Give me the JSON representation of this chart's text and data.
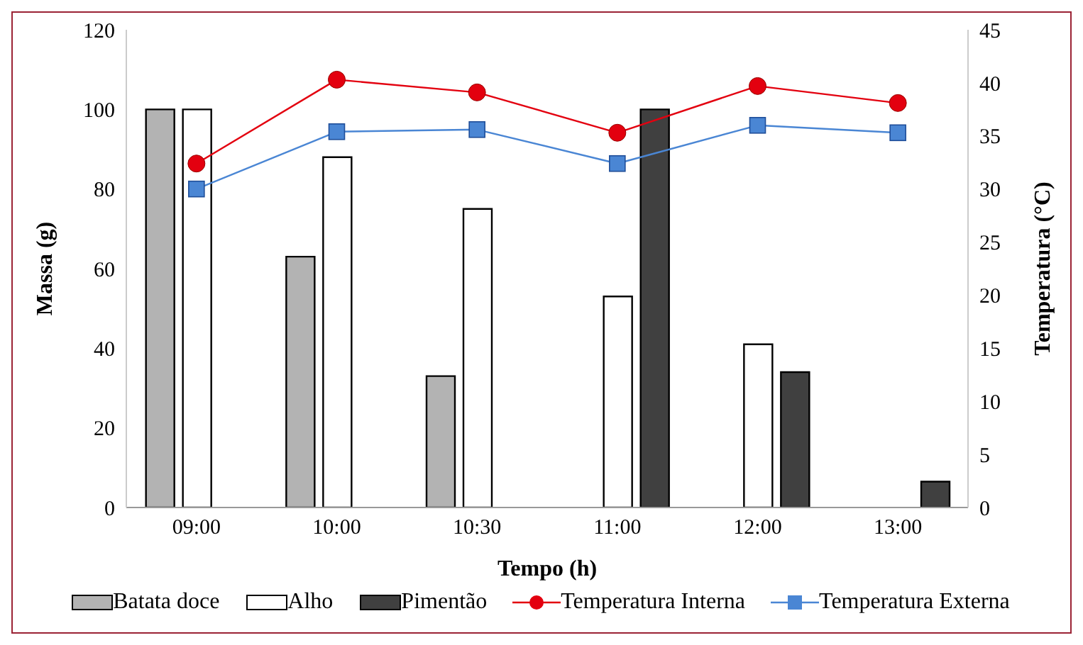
{
  "chart_data": {
    "type": "bar",
    "xlabel": "Tempo (h)",
    "ylabel": "Massa (g)",
    "y2label": "Temperatura (°C)",
    "categories": [
      "09:00",
      "10:00",
      "10:30",
      "11:00",
      "12:00",
      "13:00"
    ],
    "series": [
      {
        "name": "Batata doce",
        "color": "#b3b3b3",
        "values": [
          100,
          63,
          33,
          null,
          null,
          null
        ]
      },
      {
        "name": "Alho",
        "color": "#ffffff",
        "values": [
          100,
          88,
          75,
          53,
          41,
          null
        ]
      },
      {
        "name": "Pimentão",
        "color": "#404040",
        "values": [
          null,
          null,
          null,
          100,
          34,
          6.5
        ]
      },
      {
        "name": "Temperatura Interna",
        "type": "line",
        "axis": "y2",
        "color": "#e3000f",
        "marker": "circle",
        "values": [
          32.4,
          40.3,
          39.1,
          35.3,
          39.7,
          38.1
        ]
      },
      {
        "name": "Temperatura Externa",
        "type": "line",
        "axis": "y2",
        "color": "#4a86d4",
        "marker": "square",
        "values": [
          30,
          35.4,
          35.6,
          32.4,
          36,
          35.3
        ]
      }
    ],
    "ylim": [
      0,
      120
    ],
    "yticks": [
      0,
      20,
      40,
      60,
      80,
      100,
      120
    ],
    "y2lim": [
      0,
      45
    ],
    "y2ticks": [
      0,
      5,
      10,
      15,
      20,
      25,
      30,
      35,
      40,
      45
    ],
    "grid": false,
    "legend": "bottom"
  }
}
